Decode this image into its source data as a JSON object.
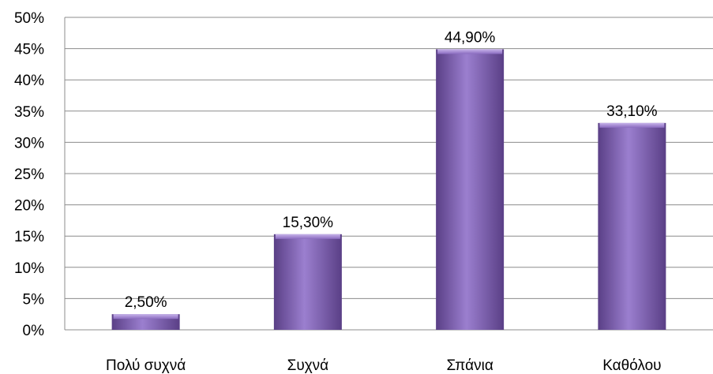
{
  "chart_data": {
    "type": "bar",
    "categories": [
      "Πολύ συχνά",
      "Συχνά",
      "Σπάνια",
      "Καθόλου"
    ],
    "values": [
      2.5,
      15.3,
      44.9,
      33.1
    ],
    "data_labels": [
      "2,50%",
      "15,30%",
      "44,90%",
      "33,10%"
    ],
    "yticks": [
      0,
      5,
      10,
      15,
      20,
      25,
      30,
      35,
      40,
      45,
      50
    ],
    "ytick_labels": [
      "0%",
      "5%",
      "10%",
      "15%",
      "20%",
      "25%",
      "30%",
      "35%",
      "40%",
      "45%",
      "50%"
    ],
    "ylim": [
      0,
      50
    ],
    "grid": true,
    "bar_color": "#7f5fae",
    "bar_color_light": "#9b7fcf",
    "bar_color_dark": "#5a3f86"
  }
}
